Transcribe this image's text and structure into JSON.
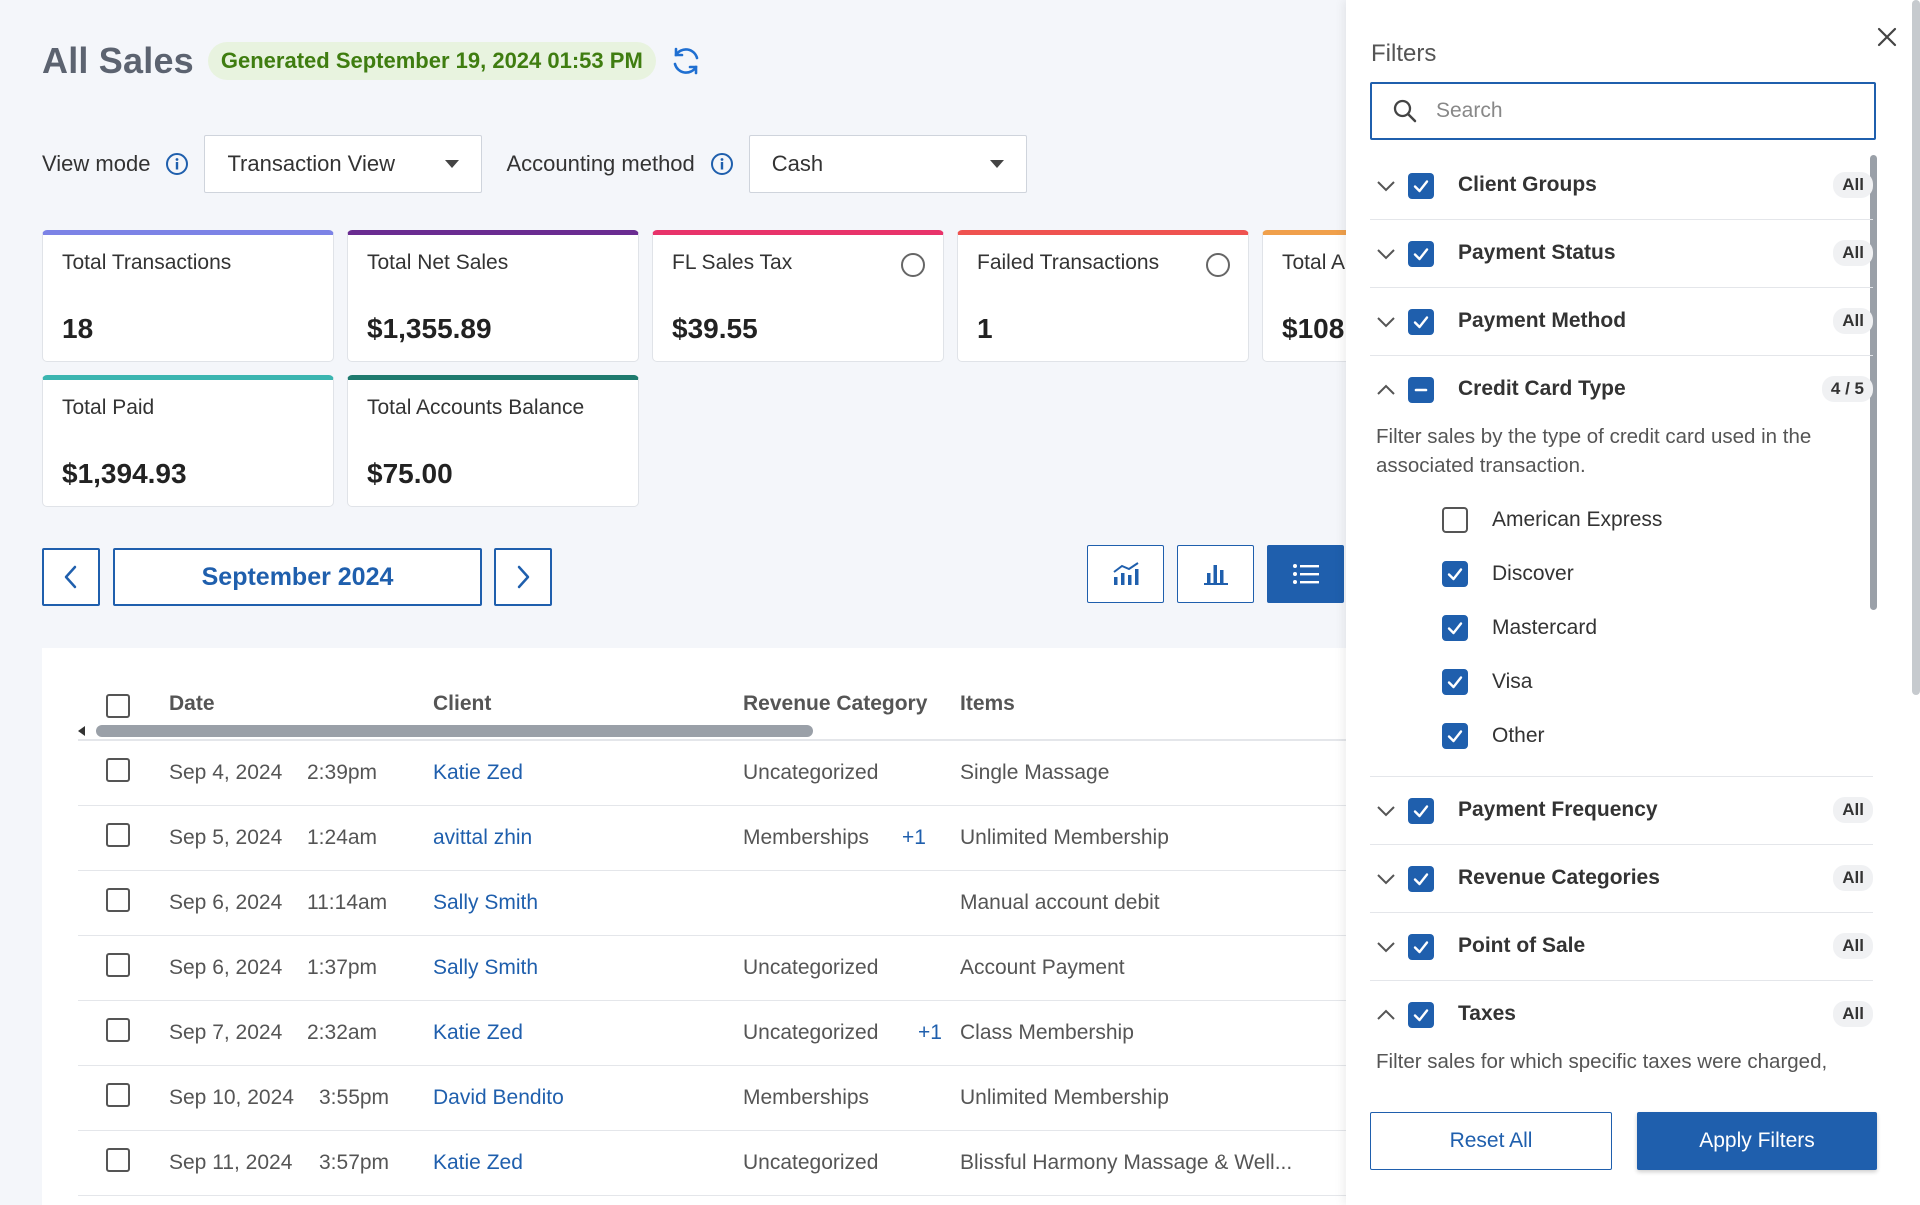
{
  "header": {
    "title": "All Sales",
    "generated": "Generated September 19, 2024 01:53 PM"
  },
  "controls": {
    "view_mode_label": "View mode",
    "view_mode_value": "Transaction View",
    "accounting_label": "Accounting method",
    "accounting_value": "Cash"
  },
  "cards": [
    {
      "label": "Total Transactions",
      "value": "18",
      "color": "#7c83e6",
      "radio": false
    },
    {
      "label": "Total Net Sales",
      "value": "$1,355.89",
      "color": "#6a2c91",
      "radio": false
    },
    {
      "label": "FL Sales Tax",
      "value": "$39.55",
      "color": "#e8336a",
      "radio": true
    },
    {
      "label": "Failed Transactions",
      "value": "1",
      "color": "#ef5350",
      "radio": true
    },
    {
      "label": "Total A",
      "value": "$108",
      "color": "#f0a04b",
      "radio": false
    },
    {
      "label": "Total Paid",
      "value": "$1,394.93",
      "color": "#3bb5b0",
      "radio": false
    },
    {
      "label": "Total Accounts Balance",
      "value": "$75.00",
      "color": "#1e7a6e",
      "radio": false
    }
  ],
  "nav": {
    "month": "September 2024"
  },
  "table": {
    "columns": [
      "Date",
      "Client",
      "Revenue Category",
      "Items"
    ],
    "rows": [
      {
        "date": "Sep 4, 2024",
        "time": "2:39pm",
        "client": "Katie Zed",
        "category": "Uncategorized",
        "extra": "",
        "item": "Single Massage"
      },
      {
        "date": "Sep 5, 2024",
        "time": "1:24am",
        "client": "avittal zhin",
        "category": "Memberships",
        "extra": "+1",
        "item": "Unlimited Membership"
      },
      {
        "date": "Sep 6, 2024",
        "time": "11:14am",
        "client": "Sally Smith",
        "category": "",
        "extra": "",
        "item": "Manual account debit"
      },
      {
        "date": "Sep 6, 2024",
        "time": "1:37pm",
        "client": "Sally Smith",
        "category": "Uncategorized",
        "extra": "",
        "item": "Account Payment"
      },
      {
        "date": "Sep 7, 2024",
        "time": "2:32am",
        "client": "Katie Zed",
        "category": "Uncategorized",
        "extra": "+1",
        "item": "Class Membership"
      },
      {
        "date": "Sep 10, 2024",
        "time": "3:55pm",
        "client": "David Bendito",
        "category": "Memberships",
        "extra": "",
        "item": "Unlimited Membership"
      },
      {
        "date": "Sep 11, 2024",
        "time": "3:57pm",
        "client": "Katie Zed",
        "category": "Uncategorized",
        "extra": "",
        "item": "Blissful Harmony Massage & Well..."
      }
    ]
  },
  "filters": {
    "title": "Filters",
    "search_placeholder": "Search",
    "groups": [
      {
        "label": "Client Groups",
        "badge": "All"
      },
      {
        "label": "Payment Status",
        "badge": "All"
      },
      {
        "label": "Payment Method",
        "badge": "All"
      },
      {
        "label": "Credit Card Type",
        "badge": "4 / 5"
      },
      {
        "label": "Payment Frequency",
        "badge": "All"
      },
      {
        "label": "Revenue Categories",
        "badge": "All"
      },
      {
        "label": "Point of Sale",
        "badge": "All"
      },
      {
        "label": "Taxes",
        "badge": "All"
      }
    ],
    "credit_card_desc": "Filter sales by the type of credit card used in the associated transaction.",
    "credit_card_options": [
      {
        "label": "American Express",
        "checked": false
      },
      {
        "label": "Discover",
        "checked": true
      },
      {
        "label": "Mastercard",
        "checked": true
      },
      {
        "label": "Visa",
        "checked": true
      },
      {
        "label": "Other",
        "checked": true
      }
    ],
    "taxes_desc": "Filter sales for which specific taxes were charged,",
    "reset_label": "Reset All",
    "apply_label": "Apply Filters"
  },
  "colors": {
    "accent": "#1f5fad",
    "badge_green": "#3f7d10"
  }
}
